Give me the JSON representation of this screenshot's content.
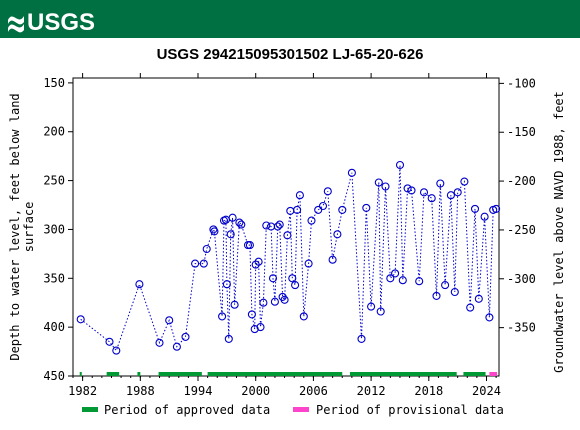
{
  "banner": {
    "logo_text": "USGS",
    "color": "#006f41"
  },
  "chart_data": {
    "type": "scatter",
    "title": "USGS 294215095301502 LJ-65-20-626",
    "ylabel_left": "Depth to water level, feet below land surface",
    "ylabel_left_lines": [
      "Depth to water level, feet below land",
      "surface"
    ],
    "ylabel_right": "Groundwater level above NAVD 1988, feet",
    "x_ticks": [
      1982,
      1988,
      1994,
      2000,
      2006,
      2012,
      2018,
      2024
    ],
    "xlim": [
      1981.0,
      2025.3
    ],
    "y_left_ticks": [
      150,
      200,
      250,
      300,
      350,
      400,
      450
    ],
    "ylim_left": [
      145,
      450
    ],
    "y_left_inverted": true,
    "y_right_ticks": [
      -100,
      -150,
      -200,
      -250,
      -300,
      -350
    ],
    "right_axis_offset": 50.5,
    "series": [
      {
        "name": "Depth to water level",
        "color": "#0000cc",
        "marker": "open-circle",
        "line": "dotted",
        "x": [
          1981.8,
          1984.8,
          1985.5,
          1987.9,
          1990.0,
          1991.0,
          1991.8,
          1992.7,
          1993.7,
          1994.6,
          1994.9,
          1995.6,
          1995.7,
          1996.5,
          1996.7,
          1996.9,
          1997.0,
          1997.2,
          1997.4,
          1997.6,
          1997.8,
          1998.3,
          1998.5,
          1999.2,
          1999.4,
          1999.6,
          1999.9,
          2000.0,
          2000.3,
          2000.5,
          2000.8,
          2001.1,
          2001.6,
          2001.8,
          2002.0,
          2002.3,
          2002.5,
          2002.8,
          2003.0,
          2003.3,
          2003.6,
          2003.8,
          2004.1,
          2004.3,
          2004.6,
          2005.0,
          2005.5,
          2005.8,
          2006.5,
          2007.0,
          2007.5,
          2008.0,
          2008.5,
          2009.0,
          2010.0,
          2011.0,
          2011.5,
          2012.0,
          2012.8,
          2013.0,
          2013.5,
          2014.0,
          2014.5,
          2015.0,
          2015.3,
          2015.8,
          2016.2,
          2017.0,
          2017.5,
          2018.3,
          2018.8,
          2019.2,
          2019.7,
          2020.3,
          2020.7,
          2021.0,
          2021.7,
          2022.3,
          2022.8,
          2023.2,
          2023.8,
          2024.3,
          2024.7,
          2025.0
        ],
        "y": [
          392,
          415,
          424,
          356,
          416,
          393,
          420,
          410,
          335,
          335,
          320,
          300,
          302,
          389,
          291,
          290,
          356,
          412,
          305,
          288,
          377,
          293,
          295,
          316,
          316,
          387,
          402,
          336,
          333,
          400,
          375,
          296,
          297,
          350,
          374,
          297,
          295,
          369,
          372,
          306,
          281,
          350,
          357,
          280,
          265,
          389,
          335,
          291,
          280,
          276,
          261,
          331,
          305,
          280,
          242,
          412,
          278,
          379,
          252,
          384,
          256,
          350,
          345,
          234,
          352,
          258,
          260,
          353,
          262,
          268,
          368,
          253,
          357,
          265,
          364,
          262,
          251,
          380,
          279,
          371,
          287,
          390,
          280,
          279
        ]
      }
    ],
    "periods": [
      {
        "name": "Period of approved data",
        "color": "#009933",
        "ranges": [
          [
            1981.7,
            1981.9
          ],
          [
            1984.5,
            1985.8
          ],
          [
            1987.7,
            1988.0
          ],
          [
            1989.9,
            1994.4
          ],
          [
            1995.0,
            2009.0
          ],
          [
            2009.8,
            2020.9
          ],
          [
            2021.6,
            2023.9
          ]
        ]
      },
      {
        "name": "Period of provisional data",
        "color": "#ff44cc",
        "ranges": [
          [
            2024.3,
            2025.1
          ]
        ]
      }
    ],
    "legend_placement": "bottom"
  }
}
